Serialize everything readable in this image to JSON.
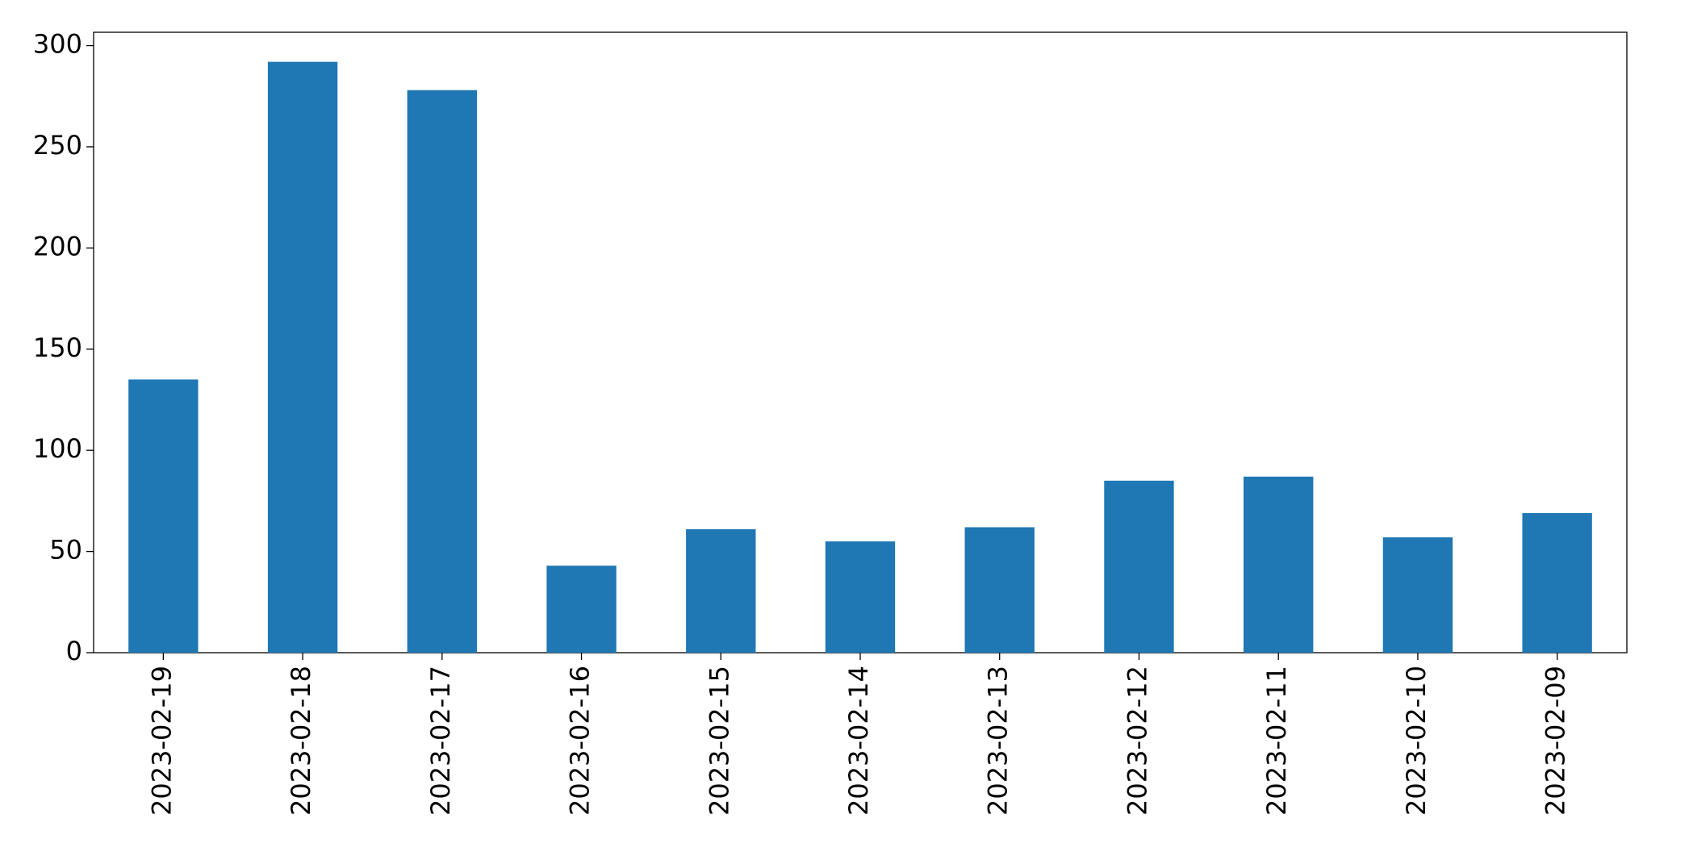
{
  "chart_data": {
    "type": "bar",
    "categories": [
      "2023-02-19",
      "2023-02-18",
      "2023-02-17",
      "2023-02-16",
      "2023-02-15",
      "2023-02-14",
      "2023-02-13",
      "2023-02-12",
      "2023-02-11",
      "2023-02-10",
      "2023-02-09"
    ],
    "values": [
      135,
      292,
      278,
      43,
      61,
      55,
      62,
      85,
      87,
      57,
      69
    ],
    "color": "#1f77b4",
    "ylim": [
      0,
      306.6
    ],
    "yticks": [
      0,
      50,
      100,
      150,
      200,
      250,
      300
    ],
    "grid": false
  }
}
